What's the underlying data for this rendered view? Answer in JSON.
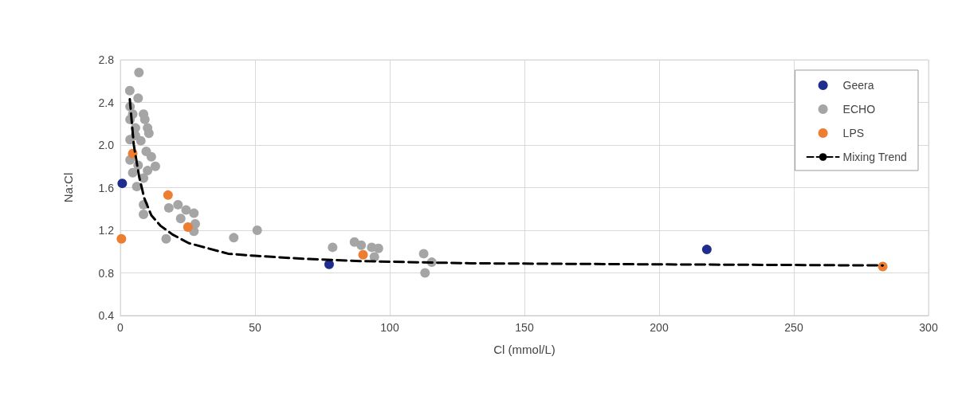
{
  "chart_data": {
    "type": "scatter",
    "xlabel": "Cl (mmol/L)",
    "ylabel": "Na:Cl",
    "xlim": [
      0,
      300
    ],
    "xticks": [
      0,
      50,
      100,
      150,
      200,
      250,
      300
    ],
    "ylim": [
      0.4,
      2.8
    ],
    "yticks": [
      {
        "value": 0.4,
        "label": "0.4"
      },
      {
        "value": 0.8,
        "label": "0.8"
      },
      {
        "value": 1.2,
        "label": "1.2"
      },
      {
        "value": 1.6,
        "label": "1.6"
      },
      {
        "value": 2.0,
        "label": "2.0"
      },
      {
        "value": 2.4,
        "label": "2.4"
      },
      {
        "value": 2.8,
        "label": "2.8"
      }
    ],
    "grid": true,
    "legend": "top right",
    "marker": "circle",
    "series": [
      {
        "name": "Geera",
        "color": "#1f2d8f",
        "x": [
          0.7,
          77.5,
          217.7
        ],
        "values": [
          1.64,
          0.88,
          1.02
        ]
      },
      {
        "name": "ECHO",
        "color": "#a5a5a5",
        "x": [
          6.9,
          3.5,
          6.6,
          3.6,
          4.6,
          8.6,
          9.1,
          3.6,
          10.1,
          5.6,
          10.6,
          3.6,
          7.6,
          5.6,
          9.6,
          3.6,
          11.5,
          13.0,
          6.6,
          10.1,
          4.6,
          8.6,
          6.1,
          8.6,
          8.6,
          17.0,
          18.0,
          21.4,
          24.4,
          27.3,
          22.4,
          27.8,
          27.3,
          42.1,
          50.8,
          78.8,
          86.9,
          89.4,
          93.3,
          95.8,
          94.3,
          112.6,
          115.6,
          113.1
        ],
        "values": [
          2.68,
          2.51,
          2.44,
          2.36,
          2.29,
          2.29,
          2.24,
          2.24,
          2.16,
          2.16,
          2.11,
          2.05,
          2.04,
          2.09,
          1.94,
          1.86,
          1.89,
          1.8,
          1.81,
          1.76,
          1.74,
          1.69,
          1.61,
          1.44,
          1.35,
          1.12,
          1.41,
          1.44,
          1.39,
          1.36,
          1.31,
          1.26,
          1.19,
          1.13,
          1.2,
          1.04,
          1.09,
          1.06,
          1.04,
          1.03,
          0.95,
          0.98,
          0.9,
          0.8
        ]
      },
      {
        "name": "LPS",
        "color": "#ed7d31",
        "x": [
          0.4,
          4.6,
          17.7,
          25.1,
          90.1,
          283
        ],
        "values": [
          1.12,
          1.92,
          1.53,
          1.23,
          0.97,
          0.86
        ]
      },
      {
        "name": "Mixing Trend",
        "type": "line",
        "color": "#000000",
        "line_style": "dashed",
        "marker": "none",
        "x": [
          3.5,
          5,
          7,
          8.9,
          11.5,
          15,
          19.4,
          25.3,
          40,
          50,
          70,
          90,
          130,
          200,
          283
        ],
        "values": [
          2.43,
          2.0,
          1.7,
          1.5,
          1.34,
          1.24,
          1.16,
          1.08,
          0.98,
          0.96,
          0.93,
          0.91,
          0.89,
          0.88,
          0.87
        ]
      }
    ]
  }
}
